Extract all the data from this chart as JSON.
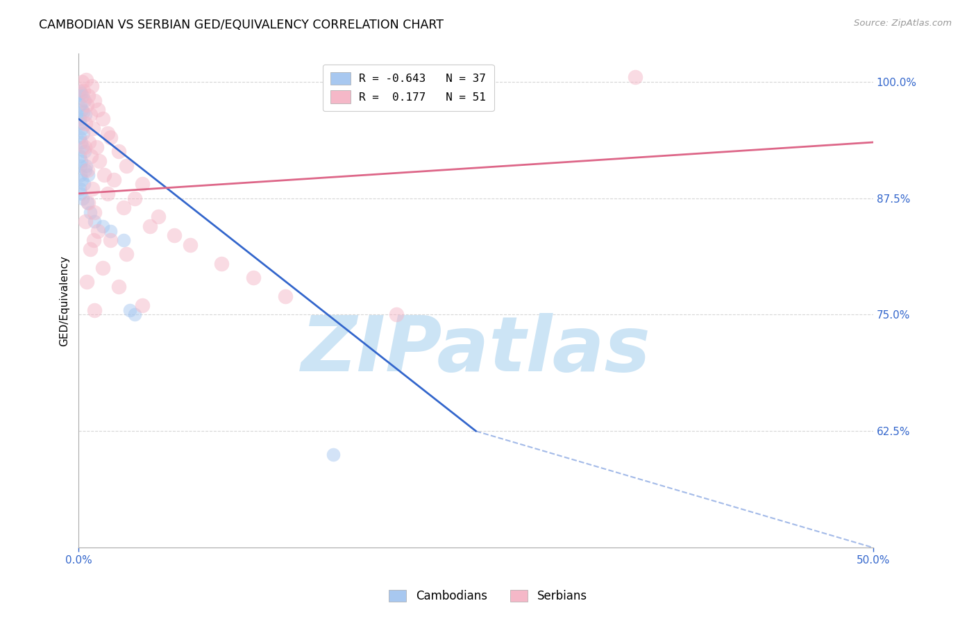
{
  "title": "CAMBODIAN VS SERBIAN GED/EQUIVALENCY CORRELATION CHART",
  "source": "Source: ZipAtlas.com",
  "ylabel": "GED/Equivalency",
  "xlim": [
    0.0,
    50.0
  ],
  "ylim": [
    50.0,
    103.0
  ],
  "y_tick_vals": [
    62.5,
    75.0,
    87.5,
    100.0
  ],
  "y_tick_labels": [
    "62.5%",
    "75.0%",
    "87.5%",
    "100.0%"
  ],
  "x_tick_vals": [
    0.0,
    50.0
  ],
  "x_tick_labels": [
    "0.0%",
    "50.0%"
  ],
  "legend_entries": [
    {
      "label_r": "R = -0.643",
      "label_n": "N = 37",
      "color": "#a8c8f0"
    },
    {
      "label_r": "R =  0.177",
      "label_n": "N = 51",
      "color": "#f5b8c8"
    }
  ],
  "cambodian_color": "#a8c8f0",
  "serbian_color": "#f5b8c8",
  "cambodian_line_color": "#3366cc",
  "serbian_line_color": "#dd6688",
  "watermark": "ZIPatlas",
  "watermark_color": "#cce4f5",
  "camb_line_x0": 0.0,
  "camb_line_y0": 96.0,
  "camb_line_x1": 25.0,
  "camb_line_y1": 62.5,
  "camb_dash_x0": 25.0,
  "camb_dash_y0": 62.5,
  "camb_dash_x1": 50.0,
  "camb_dash_y1": 50.0,
  "serb_line_x0": 0.0,
  "serb_line_y0": 88.0,
  "serb_line_x1": 50.0,
  "serb_line_y1": 93.5,
  "cambodian_points": [
    [
      0.05,
      99.0
    ],
    [
      0.15,
      98.8
    ],
    [
      0.22,
      98.5
    ],
    [
      0.35,
      98.0
    ],
    [
      0.1,
      97.5
    ],
    [
      0.18,
      97.0
    ],
    [
      0.28,
      96.8
    ],
    [
      0.4,
      96.5
    ],
    [
      0.08,
      96.0
    ],
    [
      0.12,
      95.5
    ],
    [
      0.2,
      95.0
    ],
    [
      0.3,
      94.5
    ],
    [
      0.06,
      94.0
    ],
    [
      0.14,
      93.5
    ],
    [
      0.25,
      93.0
    ],
    [
      0.38,
      92.5
    ],
    [
      0.07,
      92.0
    ],
    [
      0.16,
      91.5
    ],
    [
      0.09,
      91.0
    ],
    [
      0.42,
      90.5
    ],
    [
      0.11,
      90.0
    ],
    [
      0.19,
      89.5
    ],
    [
      0.32,
      89.0
    ],
    [
      0.05,
      88.5
    ],
    [
      0.13,
      88.0
    ],
    [
      0.24,
      87.5
    ],
    [
      0.55,
      87.0
    ],
    [
      0.7,
      86.0
    ],
    [
      1.0,
      85.0
    ],
    [
      1.5,
      84.5
    ],
    [
      2.0,
      84.0
    ],
    [
      2.8,
      83.0
    ],
    [
      3.2,
      75.5
    ],
    [
      3.5,
      75.0
    ],
    [
      16.0,
      60.0
    ],
    [
      0.45,
      91.0
    ],
    [
      0.6,
      90.0
    ]
  ],
  "serbian_points": [
    [
      0.2,
      100.0
    ],
    [
      0.45,
      100.2
    ],
    [
      0.8,
      99.5
    ],
    [
      0.3,
      99.0
    ],
    [
      0.6,
      98.5
    ],
    [
      1.0,
      98.0
    ],
    [
      0.5,
      97.5
    ],
    [
      1.2,
      97.0
    ],
    [
      0.7,
      96.5
    ],
    [
      1.5,
      96.0
    ],
    [
      0.4,
      95.5
    ],
    [
      0.9,
      95.0
    ],
    [
      1.8,
      94.5
    ],
    [
      2.0,
      94.0
    ],
    [
      0.65,
      93.5
    ],
    [
      1.1,
      93.0
    ],
    [
      2.5,
      92.5
    ],
    [
      0.75,
      92.0
    ],
    [
      1.3,
      91.5
    ],
    [
      3.0,
      91.0
    ],
    [
      0.55,
      90.5
    ],
    [
      1.6,
      90.0
    ],
    [
      2.2,
      89.5
    ],
    [
      4.0,
      89.0
    ],
    [
      0.85,
      88.5
    ],
    [
      1.8,
      88.0
    ],
    [
      3.5,
      87.5
    ],
    [
      0.6,
      87.0
    ],
    [
      2.8,
      86.5
    ],
    [
      1.0,
      86.0
    ],
    [
      5.0,
      85.5
    ],
    [
      0.4,
      85.0
    ],
    [
      4.5,
      84.5
    ],
    [
      1.2,
      84.0
    ],
    [
      6.0,
      83.5
    ],
    [
      2.0,
      83.0
    ],
    [
      7.0,
      82.5
    ],
    [
      0.7,
      82.0
    ],
    [
      3.0,
      81.5
    ],
    [
      9.0,
      80.5
    ],
    [
      1.5,
      80.0
    ],
    [
      11.0,
      79.0
    ],
    [
      0.5,
      78.5
    ],
    [
      2.5,
      78.0
    ],
    [
      13.0,
      77.0
    ],
    [
      4.0,
      76.0
    ],
    [
      1.0,
      75.5
    ],
    [
      20.0,
      75.0
    ],
    [
      35.0,
      100.5
    ],
    [
      0.35,
      93.0
    ],
    [
      0.95,
      83.0
    ]
  ]
}
